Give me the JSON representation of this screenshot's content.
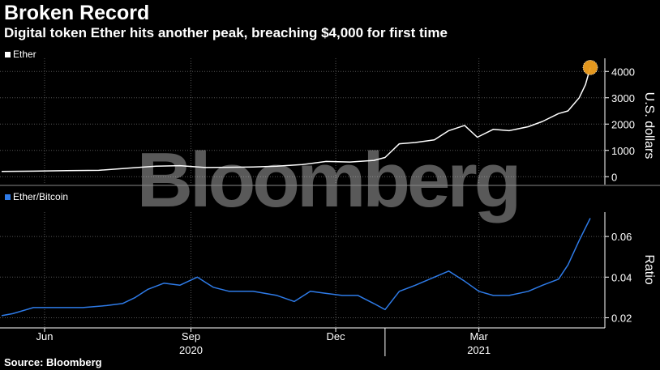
{
  "header": {
    "title": "Broken Record",
    "subtitle": "Digital token Ether hits another peak, breaching $4,000 for first time"
  },
  "source": "Source: Bloomberg",
  "watermark": "Bloomberg",
  "colors": {
    "ether_line": "#ffffff",
    "ratio_line": "#2e7be8",
    "highlight": "#f0a020",
    "grid": "#555555"
  },
  "chart_data": [
    {
      "type": "line",
      "series": [
        {
          "name": "Ether",
          "x": [
            "2020-05-05",
            "2020-05-25",
            "2020-06-15",
            "2020-07-05",
            "2020-07-25",
            "2020-08-10",
            "2020-08-25",
            "2020-09-10",
            "2020-09-25",
            "2020-10-10",
            "2020-10-25",
            "2020-11-10",
            "2020-11-25",
            "2020-12-10",
            "2020-12-25",
            "2021-01-01",
            "2021-01-10",
            "2021-01-20",
            "2021-02-01",
            "2021-02-10",
            "2021-02-20",
            "2021-02-28",
            "2021-03-10",
            "2021-03-20",
            "2021-04-01",
            "2021-04-10",
            "2021-04-20",
            "2021-04-26",
            "2021-05-03",
            "2021-05-07",
            "2021-05-10"
          ],
          "y": [
            200,
            210,
            230,
            240,
            330,
            400,
            420,
            350,
            360,
            370,
            400,
            460,
            580,
            560,
            620,
            730,
            1250,
            1300,
            1400,
            1750,
            1950,
            1500,
            1800,
            1750,
            1900,
            2100,
            2400,
            2500,
            3000,
            3500,
            4150
          ]
        }
      ],
      "y_ticks": [
        0,
        1000,
        2000,
        3000,
        4000
      ],
      "ylim": [
        -300,
        4500
      ],
      "ylabel": "U.S. dollars",
      "highlight_last_point": true,
      "legend": "top-left",
      "grid": true
    },
    {
      "type": "line",
      "series": [
        {
          "name": "Ether/Bitcoin",
          "x": [
            "2020-05-05",
            "2020-05-12",
            "2020-05-25",
            "2020-06-10",
            "2020-06-25",
            "2020-07-10",
            "2020-07-20",
            "2020-07-28",
            "2020-08-05",
            "2020-08-15",
            "2020-08-25",
            "2020-09-05",
            "2020-09-15",
            "2020-09-25",
            "2020-10-10",
            "2020-10-25",
            "2020-11-05",
            "2020-11-15",
            "2020-11-25",
            "2020-12-05",
            "2020-12-15",
            "2020-12-25",
            "2021-01-01",
            "2021-01-10",
            "2021-01-20",
            "2021-02-01",
            "2021-02-10",
            "2021-02-20",
            "2021-03-01",
            "2021-03-10",
            "2021-03-20",
            "2021-04-01",
            "2021-04-10",
            "2021-04-20",
            "2021-04-26",
            "2021-05-03",
            "2021-05-10"
          ],
          "y": [
            0.021,
            0.022,
            0.025,
            0.025,
            0.025,
            0.026,
            0.027,
            0.03,
            0.034,
            0.037,
            0.036,
            0.04,
            0.035,
            0.033,
            0.033,
            0.031,
            0.028,
            0.033,
            0.032,
            0.031,
            0.031,
            0.027,
            0.024,
            0.033,
            0.036,
            0.04,
            0.043,
            0.038,
            0.033,
            0.031,
            0.031,
            0.033,
            0.036,
            0.039,
            0.046,
            0.058,
            0.069
          ]
        }
      ],
      "y_ticks": [
        0.02,
        0.04,
        0.06
      ],
      "ylim": [
        0.015,
        0.072
      ],
      "ylabel": "Ratio",
      "legend": "top-left",
      "grid": true
    }
  ],
  "x_axis": {
    "start": "2020-05-05",
    "end": "2021-05-10",
    "months": [
      {
        "label": "Jun",
        "date": "2020-06-01"
      },
      {
        "label": "Sep",
        "date": "2020-09-01"
      },
      {
        "label": "Dec",
        "date": "2020-12-01"
      },
      {
        "label": "Mar",
        "date": "2021-03-01"
      }
    ],
    "years": [
      {
        "label": "2020",
        "date": "2020-09-01"
      },
      {
        "label": "2021",
        "date": "2021-03-01"
      }
    ],
    "year_divider": "2021-01-01"
  }
}
